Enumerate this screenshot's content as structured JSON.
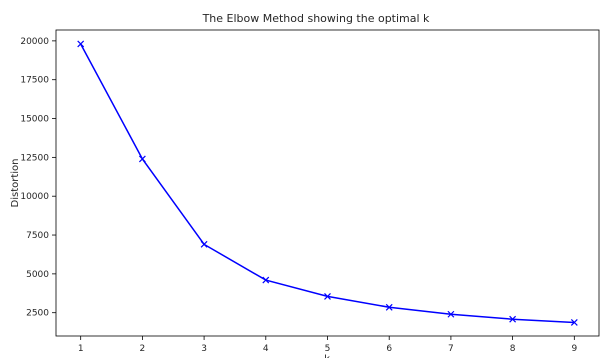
{
  "chart_data": {
    "type": "line",
    "title": "The Elbow Method showing the optimal k",
    "xlabel": "k",
    "ylabel": "Distortion",
    "x": [
      1,
      2,
      3,
      4,
      5,
      6,
      7,
      8,
      9
    ],
    "series": [
      {
        "values": [
          19800,
          12400,
          6900,
          4600,
          3550,
          2850,
          2400,
          2080,
          1870
        ],
        "color": "#0000ff",
        "marker": "x"
      }
    ],
    "xlim": [
      0.6,
      9.4
    ],
    "ylim": [
      1000,
      20700
    ],
    "xticks": [
      1,
      2,
      3,
      4,
      5,
      6,
      7,
      8,
      9
    ],
    "yticks": [
      2500,
      5000,
      7500,
      10000,
      12500,
      15000,
      17500,
      20000
    ],
    "grid": false
  }
}
